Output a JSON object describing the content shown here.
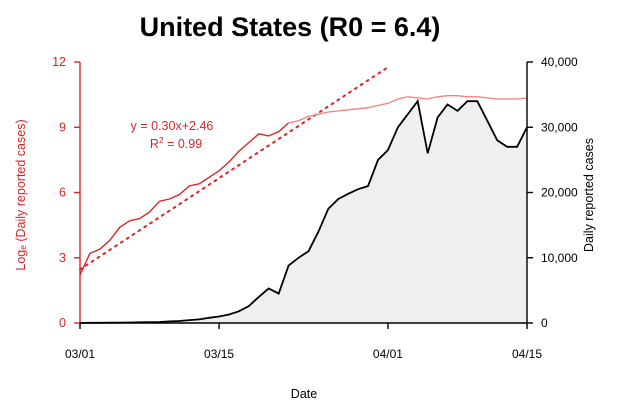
{
  "chart_data": {
    "type": "line",
    "title": "United States (R0 = 6.4)",
    "xlabel": "Date",
    "ylabel_left": "Logₑ (Daily reported cases)",
    "ylabel_right": "Daily reported cases",
    "x_ticks": [
      "03/01",
      "03/15",
      "04/01",
      "04/15"
    ],
    "x_tick_days": [
      0,
      14,
      31,
      45
    ],
    "xlim": [
      0,
      45
    ],
    "y_left_ticks": [
      "0",
      "3",
      "6",
      "9",
      "12"
    ],
    "y_left_lim": [
      0,
      12
    ],
    "y_right_ticks": [
      "0",
      "10,000",
      "20,000",
      "30,000",
      "40,000"
    ],
    "y_right_lim": [
      0,
      40000
    ],
    "annotation": {
      "equation": "y = 0.30x+2.46",
      "r2_prefix": "R",
      "r2_sup": "2",
      "r2_suffix": " = 0.99"
    },
    "colors": {
      "log_series": "#d62728",
      "log_smooth": "#f08080",
      "fit_line": "#d62728",
      "cases_line": "#000000",
      "cases_fill": "#efefef",
      "left_axis": "#d62728",
      "right_axis": "#000000"
    },
    "series": [
      {
        "axis": "right",
        "style": "filled-line",
        "x": [
          0,
          1,
          2,
          3,
          4,
          5,
          6,
          7,
          8,
          9,
          10,
          11,
          12,
          13,
          14,
          15,
          16,
          17,
          18,
          19,
          20,
          21,
          22,
          23,
          24,
          25,
          26,
          27,
          28,
          29,
          30,
          31,
          32,
          33,
          34,
          35,
          36,
          37,
          38,
          39,
          40,
          41,
          42,
          43,
          44,
          45
        ],
        "values": [
          0,
          25,
          30,
          45,
          50,
          80,
          100,
          120,
          160,
          250,
          300,
          450,
          550,
          800,
          1000,
          1300,
          1800,
          2600,
          4000,
          5300,
          4500,
          8800,
          10000,
          11000,
          14000,
          17500,
          19000,
          19800,
          20500,
          21000,
          25000,
          26500,
          30000,
          32000,
          34000,
          26000,
          31500,
          33500,
          32500,
          34000,
          34000,
          31000,
          28000,
          27000,
          27000,
          30000
        ]
      },
      {
        "axis": "left",
        "style": "line",
        "x": [
          0,
          1,
          2,
          3,
          4,
          5,
          6,
          7,
          8,
          9,
          10,
          11,
          12,
          13,
          14,
          15,
          16,
          17,
          18,
          19,
          20,
          21,
          22,
          23,
          24,
          25,
          26,
          27,
          28,
          29,
          30,
          31,
          32,
          33,
          34,
          35,
          36,
          37,
          38,
          39,
          40,
          41,
          42,
          43,
          44,
          45
        ],
        "values": [
          2.2,
          3.2,
          3.4,
          3.8,
          4.4,
          4.7,
          4.8,
          5.1,
          5.6,
          5.7,
          5.9,
          6.3,
          6.4,
          6.7,
          7.0,
          7.4,
          7.9,
          8.3,
          8.7,
          8.6,
          8.8,
          9.2,
          9.3,
          9.5,
          9.6,
          9.7,
          9.75,
          9.8,
          9.85,
          9.9,
          10.0,
          10.1,
          10.3,
          10.4,
          10.35,
          10.3,
          10.4,
          10.45,
          10.45,
          10.4,
          10.4,
          10.35,
          10.3,
          10.3,
          10.3,
          10.35
        ]
      },
      {
        "axis": "left",
        "style": "dotted-fit",
        "x": [
          0,
          31
        ],
        "values": [
          2.46,
          11.76
        ]
      }
    ]
  }
}
